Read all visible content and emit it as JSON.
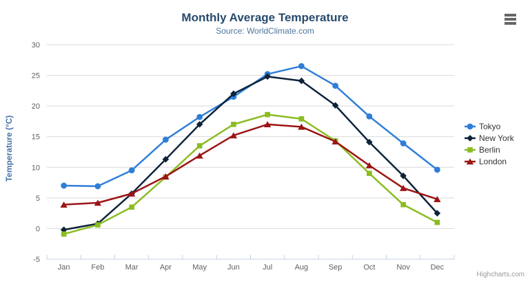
{
  "credits": "Highcharts.com",
  "chart_data": {
    "type": "line",
    "title": "Monthly Average Temperature",
    "subtitle": "Source: WorldClimate.com",
    "categories": [
      "Jan",
      "Feb",
      "Mar",
      "Apr",
      "May",
      "Jun",
      "Jul",
      "Aug",
      "Sep",
      "Oct",
      "Nov",
      "Dec"
    ],
    "xlabel": "",
    "ylabel": "Temperature (°C)",
    "ylim": [
      -5,
      30
    ],
    "ytick_step": 5,
    "grid": "horizontal",
    "legend_position": "right",
    "series": [
      {
        "name": "Tokyo",
        "color": "#2f7ed8",
        "marker": "circle",
        "values": [
          7.0,
          6.9,
          9.5,
          14.5,
          18.2,
          21.5,
          25.2,
          26.5,
          23.3,
          18.3,
          13.9,
          9.6
        ]
      },
      {
        "name": "New York",
        "color": "#0d233a",
        "marker": "diamond",
        "values": [
          -0.2,
          0.8,
          5.7,
          11.3,
          17.0,
          22.0,
          24.8,
          24.1,
          20.1,
          14.1,
          8.6,
          2.5
        ]
      },
      {
        "name": "Berlin",
        "color": "#8bbc21",
        "marker": "square",
        "values": [
          -0.9,
          0.6,
          3.5,
          8.4,
          13.5,
          17.0,
          18.6,
          17.9,
          14.3,
          9.0,
          3.9,
          1.0
        ]
      },
      {
        "name": "London",
        "color": "#9c1414",
        "marker": "triangle",
        "values": [
          3.9,
          4.2,
          5.7,
          8.5,
          11.9,
          15.2,
          17.0,
          16.6,
          14.2,
          10.3,
          6.6,
          4.8
        ]
      }
    ],
    "axis_colors": {
      "tick_label": "#606060",
      "grid_line": "#d8d8d8",
      "axis_line": "#c0d0e0",
      "title_color": "#274b6d",
      "subtitle_color": "#4d759e",
      "y_title_color": "#4572a7"
    }
  }
}
